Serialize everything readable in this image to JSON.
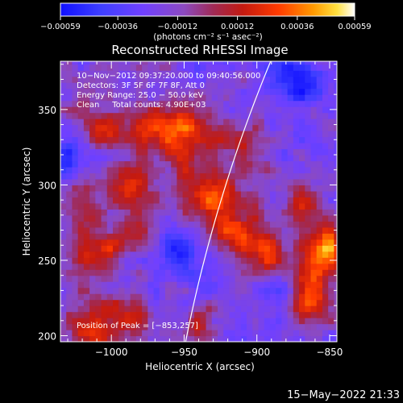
{
  "chart_data": {
    "type": "heatmap",
    "title": "Reconstructed RHESSI Image",
    "xlabel": "Heliocentric X (arcsec)",
    "ylabel": "Heliocentric Y (arcsec)",
    "xlim": [
      -1035,
      -845
    ],
    "ylim": [
      196,
      382
    ],
    "xticks": [
      -1000,
      -950,
      -900,
      -850
    ],
    "xtick_labels": [
      "−1000",
      "−950",
      "−900",
      "−850"
    ],
    "yticks": [
      200,
      250,
      300,
      350
    ],
    "ytick_labels": [
      "200",
      "250",
      "300",
      "350"
    ],
    "colorbar": {
      "ticks": [
        -0.00059,
        -0.00036,
        -0.00012,
        0.00012,
        0.00036,
        0.00059
      ],
      "tick_labels": [
        "−0.00059",
        "−0.00036",
        "−0.00012",
        "0.00012",
        "0.00036",
        "0.00059"
      ],
      "range": [
        -0.00059,
        0.00059
      ],
      "unit_label": "(photons cm⁻² s⁻¹ asec⁻²)"
    },
    "annotations": [
      "10−Nov−2012 09:37:20.000 to 09:40:56.000",
      "Detectors: 3F 5F 6F 7F 8F, Att 0",
      "Energy Range: 25.0 − 50.0 keV",
      "Clean     Total counts: 4.90E+03"
    ],
    "peak_label": "Position of Peak = [−853,257]",
    "limb": {
      "description": "solar limb line"
    },
    "pixel_size_arcsec": 4,
    "hotspots": [
      {
        "x": -955,
        "y": 335,
        "amp": 0.0005,
        "sx": 20,
        "sy": 14
      },
      {
        "x": -1005,
        "y": 340,
        "amp": 0.00036,
        "sx": 14,
        "sy": 10
      },
      {
        "x": -935,
        "y": 295,
        "amp": 0.00045,
        "sx": 16,
        "sy": 14
      },
      {
        "x": -920,
        "y": 270,
        "amp": 0.0004,
        "sx": 12,
        "sy": 12
      },
      {
        "x": -1010,
        "y": 255,
        "amp": 0.00042,
        "sx": 14,
        "sy": 12
      },
      {
        "x": -1020,
        "y": 290,
        "amp": 0.0003,
        "sx": 10,
        "sy": 10
      },
      {
        "x": -985,
        "y": 300,
        "amp": 0.0003,
        "sx": 10,
        "sy": 10
      },
      {
        "x": -985,
        "y": 275,
        "amp": 0.00024,
        "sx": 12,
        "sy": 10
      },
      {
        "x": -853,
        "y": 257,
        "amp": 0.00059,
        "sx": 12,
        "sy": 12
      },
      {
        "x": -865,
        "y": 225,
        "amp": 0.00052,
        "sx": 12,
        "sy": 12
      },
      {
        "x": -895,
        "y": 255,
        "amp": 0.00042,
        "sx": 10,
        "sy": 14
      },
      {
        "x": -870,
        "y": 285,
        "amp": 0.0003,
        "sx": 12,
        "sy": 10
      },
      {
        "x": -990,
        "y": 215,
        "amp": 0.00038,
        "sx": 12,
        "sy": 10
      },
      {
        "x": -1020,
        "y": 210,
        "amp": 0.0003,
        "sx": 10,
        "sy": 10
      },
      {
        "x": -940,
        "y": 210,
        "amp": 0.00025,
        "sx": 10,
        "sy": 8
      },
      {
        "x": -905,
        "y": 325,
        "amp": 0.0002,
        "sx": 12,
        "sy": 12
      },
      {
        "x": -1005,
        "y": 200,
        "amp": 0.00026,
        "sx": 10,
        "sy": 8
      },
      {
        "x": -870,
        "y": 370,
        "amp": -0.0004,
        "sx": 14,
        "sy": 10
      },
      {
        "x": -885,
        "y": 230,
        "amp": -0.0003,
        "sx": 10,
        "sy": 10
      },
      {
        "x": -955,
        "y": 255,
        "amp": -0.00024,
        "sx": 12,
        "sy": 10
      },
      {
        "x": -1030,
        "y": 320,
        "amp": -0.0002,
        "sx": 10,
        "sy": 10
      }
    ]
  },
  "footer": {
    "timestamp": "15−May−2022 21:33"
  }
}
